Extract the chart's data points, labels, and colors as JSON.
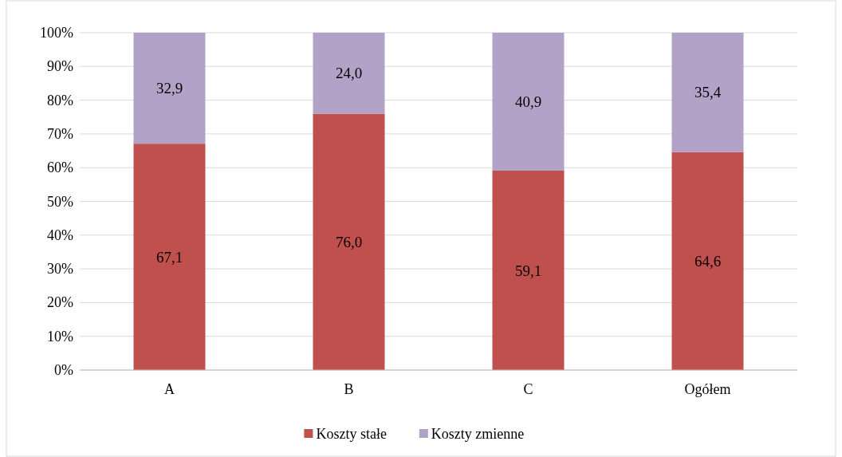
{
  "chart_data": {
    "type": "bar",
    "stacked": true,
    "categories": [
      "A",
      "B",
      "C",
      "Ogółem"
    ],
    "series": [
      {
        "name": "Koszty stałe",
        "color": "#c0504d",
        "values": [
          67.1,
          76.0,
          59.1,
          64.6
        ],
        "value_labels": [
          "67,1",
          "76,0",
          "59,1",
          "64,6"
        ]
      },
      {
        "name": "Koszty zmienne",
        "color": "#b2a2c7",
        "values": [
          32.9,
          24.0,
          40.9,
          35.4
        ],
        "value_labels": [
          "32,9",
          "24,0",
          "40,9",
          "35,4"
        ]
      }
    ],
    "ylim": [
      0,
      100
    ],
    "yticks": [
      {
        "value": 0,
        "label": "0%"
      },
      {
        "value": 10,
        "label": "10%"
      },
      {
        "value": 20,
        "label": "20%"
      },
      {
        "value": 30,
        "label": "30%"
      },
      {
        "value": 40,
        "label": "40%"
      },
      {
        "value": 50,
        "label": "50%"
      },
      {
        "value": 60,
        "label": "60%"
      },
      {
        "value": 70,
        "label": "70%"
      },
      {
        "value": 80,
        "label": "80%"
      },
      {
        "value": 90,
        "label": "90%"
      },
      {
        "value": 100,
        "label": "100%"
      }
    ],
    "grid": "y",
    "legend": "bottom"
  }
}
